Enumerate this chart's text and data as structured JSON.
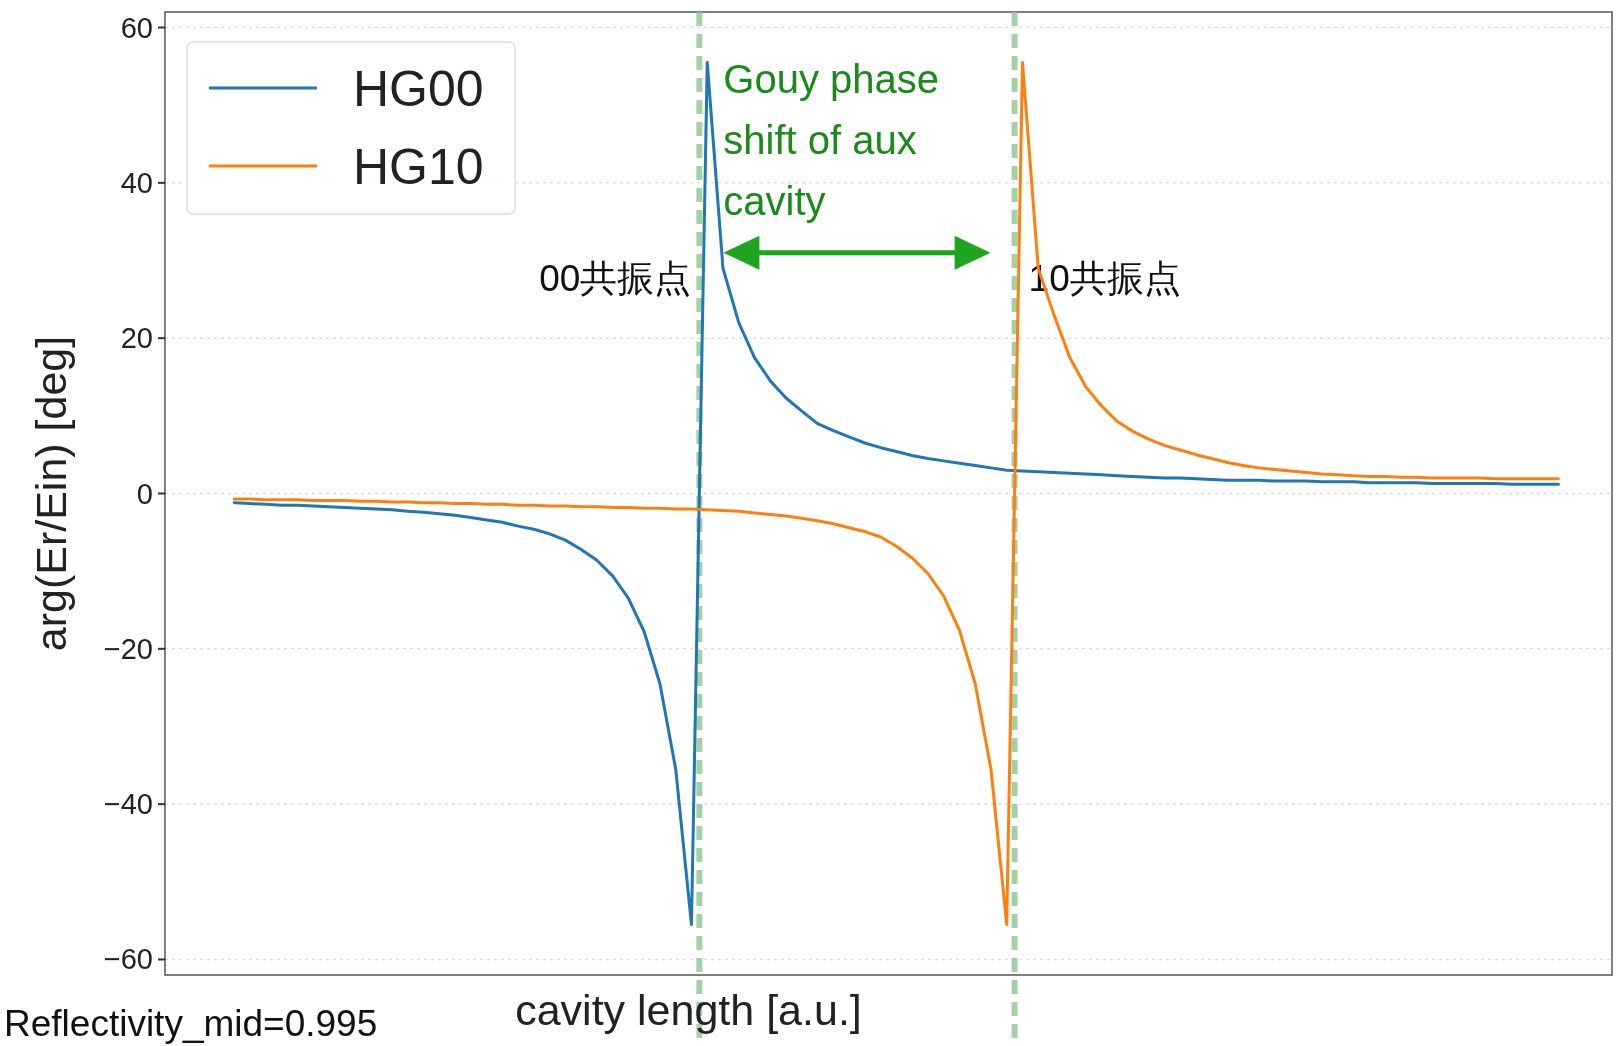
{
  "chart_data": {
    "type": "line",
    "xlabel": "cavity length [a.u.]",
    "ylabel": "arg(Er/Ein) [deg]",
    "categories": [
      null,
      null,
      null,
      null,
      null,
      null,
      null,
      null,
      null,
      null,
      null,
      null,
      null,
      null,
      null,
      null,
      null,
      null,
      null,
      null,
      null,
      null,
      null,
      null,
      null,
      null,
      null,
      null,
      null,
      null,
      null,
      null,
      null,
      null,
      null,
      null,
      null,
      null,
      null,
      null,
      null,
      null,
      null,
      null,
      null,
      null,
      null,
      null,
      null,
      null,
      null,
      null,
      null,
      null,
      null,
      null,
      null,
      null,
      null,
      null,
      null,
      null,
      null,
      null,
      null,
      null,
      null,
      null,
      null,
      null,
      null,
      null,
      null,
      null,
      null,
      null,
      null,
      null,
      null,
      null,
      null,
      null,
      null,
      null,
      null
    ],
    "ylim": [
      -62,
      62
    ],
    "yticks": [
      {
        "value": -60,
        "label": "−60"
      },
      {
        "value": -40,
        "label": "−40"
      },
      {
        "value": -20,
        "label": "−20"
      },
      0,
      20,
      40,
      60
    ],
    "grid": true,
    "legend": "top left",
    "line_style": "solid",
    "series": [
      {
        "name": "HG00",
        "color": "#1f77b4",
        "values": [
          -1.2,
          -1.3,
          -1.4,
          -1.5,
          -1.5,
          -1.6,
          -1.7,
          -1.8,
          -1.9,
          -2.0,
          -2.1,
          -2.3,
          -2.4,
          -2.6,
          -2.8,
          -3.1,
          -3.4,
          -3.7,
          -4.2,
          -4.6,
          -5.2,
          -6.0,
          -7.2,
          -8.6,
          -10.6,
          -13.5,
          -17.8,
          -24.5,
          -35.5,
          -55.5,
          55.5,
          29,
          22,
          17.5,
          14.5,
          12.3,
          10.6,
          9.0,
          8.1,
          7.3,
          6.5,
          5.9,
          5.4,
          4.9,
          4.5,
          4.2,
          3.9,
          3.6,
          3.3,
          3.0,
          2.9,
          2.8,
          2.7,
          2.6,
          2.5,
          2.4,
          2.3,
          2.2,
          2.1,
          2.0,
          2.0,
          1.9,
          1.8,
          1.7,
          1.7,
          1.7,
          1.6,
          1.6,
          1.6,
          1.5,
          1.5,
          1.5,
          1.4,
          1.4,
          1.4,
          1.4,
          1.3,
          1.3,
          1.3,
          1.3,
          1.3,
          1.2,
          1.2,
          1.2,
          1.2
        ]
      },
      {
        "name": "HG10",
        "color": "#ff7f0e",
        "values": [
          -0.7,
          -0.7,
          -0.8,
          -0.8,
          -0.8,
          -0.9,
          -0.9,
          -0.9,
          -1.0,
          -1.0,
          -1.1,
          -1.1,
          -1.2,
          -1.2,
          -1.3,
          -1.3,
          -1.4,
          -1.4,
          -1.5,
          -1.5,
          -1.6,
          -1.6,
          -1.7,
          -1.7,
          -1.8,
          -1.8,
          -1.9,
          -1.9,
          -2.0,
          -2.0,
          -2.1,
          -2.2,
          -2.3,
          -2.5,
          -2.7,
          -2.9,
          -3.2,
          -3.5,
          -3.9,
          -4.4,
          -4.9,
          -5.6,
          -6.8,
          -8.3,
          -10.3,
          -13.2,
          -17.6,
          -24.5,
          -35.5,
          -55.5,
          55.5,
          29,
          23,
          17.5,
          13.8,
          11.3,
          9.3,
          8.0,
          7.0,
          6.2,
          5.6,
          5.0,
          4.5,
          4.0,
          3.6,
          3.3,
          3.1,
          2.9,
          2.7,
          2.5,
          2.4,
          2.3,
          2.2,
          2.2,
          2.1,
          2.1,
          2.0,
          2.0,
          2.0,
          2.0,
          1.9,
          1.9,
          1.9,
          1.9,
          1.9
        ]
      }
    ],
    "annotations": [
      "Gouy phase shift of aux cavity",
      "00共振点",
      "10共振点",
      "Reflectivity_mid=0.995"
    ]
  }
}
